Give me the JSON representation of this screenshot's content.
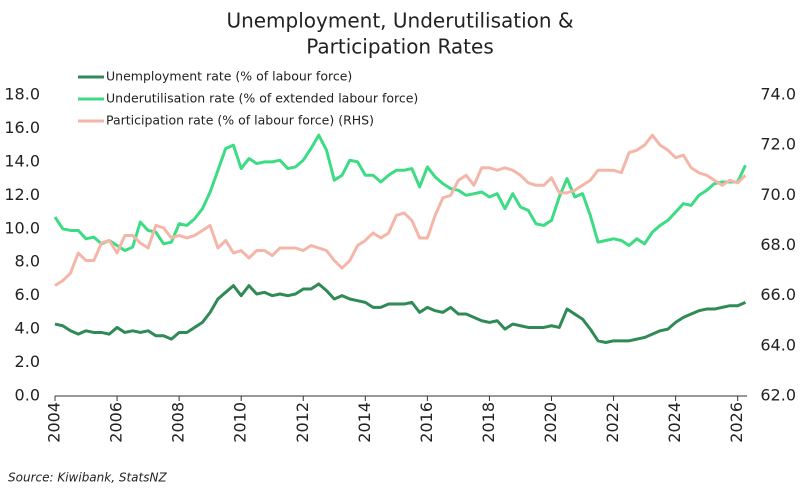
{
  "chart_data": {
    "type": "line",
    "title": [
      "Unemployment, Underutilisation &",
      "Participation Rates"
    ],
    "source": "Source: Kiwibank, StatsNZ",
    "x": [
      2004,
      2004.25,
      2004.5,
      2004.75,
      2005,
      2005.25,
      2005.5,
      2005.75,
      2006,
      2006.25,
      2006.5,
      2006.75,
      2007,
      2007.25,
      2007.5,
      2007.75,
      2008,
      2008.25,
      2008.5,
      2008.75,
      2009,
      2009.25,
      2009.5,
      2009.75,
      2010,
      2010.25,
      2010.5,
      2010.75,
      2011,
      2011.25,
      2011.5,
      2011.75,
      2012,
      2012.25,
      2012.5,
      2012.75,
      2013,
      2013.25,
      2013.5,
      2013.75,
      2014,
      2014.25,
      2014.5,
      2014.75,
      2015,
      2015.25,
      2015.5,
      2015.75,
      2016,
      2016.25,
      2016.5,
      2016.75,
      2017,
      2017.25,
      2017.5,
      2017.75,
      2018,
      2018.25,
      2018.5,
      2018.75,
      2019,
      2019.25,
      2019.5,
      2019.75,
      2020,
      2020.25,
      2020.5,
      2020.75,
      2021,
      2021.25,
      2021.5,
      2021.75,
      2022,
      2022.25,
      2022.5,
      2022.75,
      2023,
      2023.25,
      2023.5,
      2023.75,
      2024,
      2024.25,
      2024.5,
      2024.75,
      2025,
      2025.25,
      2025.5,
      2025.75,
      2026,
      2026.25
    ],
    "series": [
      {
        "name": "Unemployment rate (% of labour force)",
        "color": "#2f8a55",
        "values": [
          4.3,
          4.2,
          3.9,
          3.7,
          3.9,
          3.8,
          3.8,
          3.7,
          4.1,
          3.8,
          3.9,
          3.8,
          3.9,
          3.6,
          3.6,
          3.4,
          3.8,
          3.8,
          4.1,
          4.4,
          5.0,
          5.8,
          6.2,
          6.6,
          6.0,
          6.6,
          6.1,
          6.2,
          6.0,
          6.1,
          6.0,
          6.1,
          6.4,
          6.4,
          6.7,
          6.3,
          5.8,
          6.0,
          5.8,
          5.7,
          5.6,
          5.3,
          5.3,
          5.5,
          5.5,
          5.5,
          5.6,
          5.0,
          5.3,
          5.1,
          5.0,
          5.3,
          4.9,
          4.9,
          4.7,
          4.5,
          4.4,
          4.5,
          4.0,
          4.3,
          4.2,
          4.1,
          4.1,
          4.1,
          4.2,
          4.1,
          5.2,
          4.9,
          4.6,
          4.0,
          3.3,
          3.2,
          3.3,
          3.3,
          3.3,
          3.4,
          3.5,
          3.7,
          3.9,
          4.0,
          4.4,
          4.7,
          4.9,
          5.1,
          5.2,
          5.2,
          5.3,
          5.4,
          5.4,
          5.6
        ]
      },
      {
        "name": "Underutilisation rate (% of extended labour force)",
        "color": "#3ddc84",
        "values": [
          10.7,
          10.0,
          9.9,
          9.9,
          9.4,
          9.5,
          9.1,
          9.3,
          9.0,
          8.7,
          8.9,
          10.4,
          9.9,
          9.8,
          9.1,
          9.2,
          10.3,
          10.2,
          10.6,
          11.2,
          12.2,
          13.5,
          14.8,
          15.0,
          13.6,
          14.2,
          13.9,
          14.0,
          14.0,
          14.1,
          13.6,
          13.7,
          14.1,
          14.8,
          15.6,
          14.7,
          12.9,
          13.2,
          14.1,
          14.0,
          13.2,
          13.2,
          12.8,
          13.2,
          13.5,
          13.5,
          13.6,
          12.5,
          13.7,
          13.1,
          12.7,
          12.4,
          12.3,
          12.0,
          12.1,
          12.2,
          11.9,
          12.1,
          11.2,
          12.1,
          11.3,
          11.1,
          10.3,
          10.2,
          10.5,
          11.9,
          13.0,
          11.9,
          12.1,
          10.8,
          9.2,
          9.3,
          9.4,
          9.3,
          9.0,
          9.4,
          9.1,
          9.8,
          10.2,
          10.5,
          11.0,
          11.5,
          11.4,
          12.0,
          12.3,
          12.7,
          12.8,
          12.8,
          12.8,
          13.8
        ]
      },
      {
        "name": "Participation rate (% of labour force) (RHS)",
        "color": "#f4b6a8",
        "axis": "y2",
        "values": [
          66.4,
          66.6,
          66.9,
          67.7,
          67.4,
          67.4,
          68.1,
          68.2,
          67.7,
          68.4,
          68.4,
          68.1,
          67.9,
          68.8,
          68.7,
          68.3,
          68.4,
          68.3,
          68.4,
          68.6,
          68.8,
          67.9,
          68.2,
          67.7,
          67.8,
          67.5,
          67.8,
          67.8,
          67.6,
          67.9,
          67.9,
          67.9,
          67.8,
          68.0,
          67.9,
          67.8,
          67.4,
          67.1,
          67.4,
          68.0,
          68.2,
          68.5,
          68.3,
          68.5,
          69.2,
          69.3,
          69.0,
          68.3,
          68.3,
          69.2,
          69.9,
          70.0,
          70.6,
          70.8,
          70.4,
          71.1,
          71.1,
          71.0,
          71.1,
          71.0,
          70.8,
          70.5,
          70.4,
          70.4,
          70.7,
          70.1,
          70.1,
          70.2,
          70.4,
          70.6,
          71.0,
          71.0,
          71.0,
          70.9,
          71.7,
          71.8,
          72.0,
          72.4,
          72.0,
          71.8,
          71.5,
          71.6,
          71.1,
          70.9,
          70.8,
          70.6,
          70.4,
          70.6,
          70.5,
          70.8
        ]
      }
    ],
    "xlim": [
      2004,
      2026.3
    ],
    "xticks": [
      2004,
      2006,
      2008,
      2010,
      2012,
      2014,
      2016,
      2018,
      2020,
      2022,
      2024,
      2026
    ],
    "ylim": [
      0,
      18
    ],
    "yticks": [
      {
        "value": 0,
        "label": "0.0"
      },
      {
        "value": 2,
        "label": "2.0"
      },
      {
        "value": 4,
        "label": "4.0"
      },
      {
        "value": 6,
        "label": "6.0"
      },
      {
        "value": 8,
        "label": "8.0"
      },
      {
        "value": 10,
        "label": "10.0"
      },
      {
        "value": 12,
        "label": "12.0"
      },
      {
        "value": 14,
        "label": "14.0"
      },
      {
        "value": 16,
        "label": "16.0"
      },
      {
        "value": 18,
        "label": "18.0"
      }
    ],
    "y2lim": [
      62,
      74
    ],
    "y2ticks": [
      {
        "value": 62,
        "label": "62.0"
      },
      {
        "value": 64,
        "label": "64.0"
      },
      {
        "value": 66,
        "label": "66.0"
      },
      {
        "value": 68,
        "label": "68.0"
      },
      {
        "value": 70,
        "label": "70.0"
      },
      {
        "value": 72,
        "label": "72.0"
      },
      {
        "value": 74,
        "label": "74.0"
      }
    ],
    "grid": false,
    "legend": "upper left"
  }
}
